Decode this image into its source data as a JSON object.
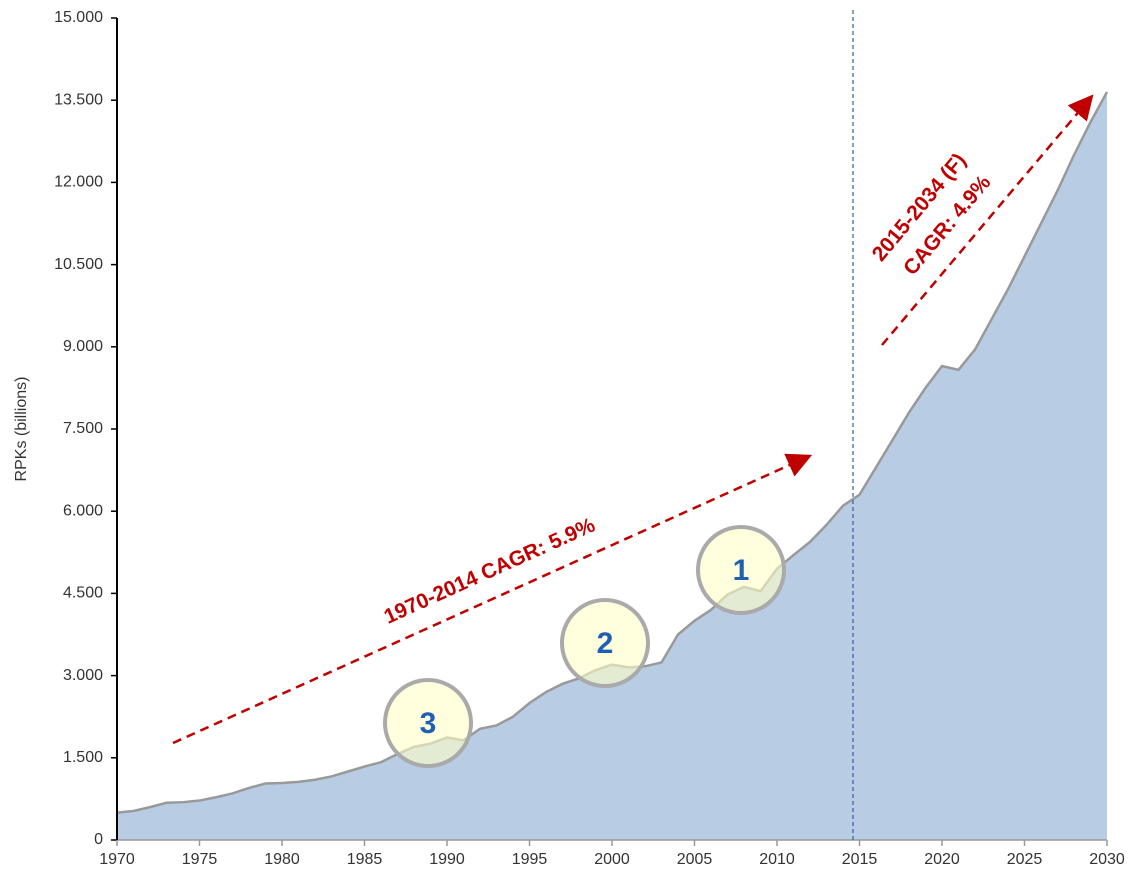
{
  "chart_data": {
    "type": "area",
    "y_label": "RPKs (billions)",
    "x": [
      1970,
      1971,
      1972,
      1973,
      1974,
      1975,
      1976,
      1977,
      1978,
      1979,
      1980,
      1981,
      1982,
      1983,
      1984,
      1985,
      1986,
      1987,
      1988,
      1989,
      1990,
      1991,
      1992,
      1993,
      1994,
      1995,
      1996,
      1997,
      1998,
      1999,
      2000,
      2001,
      2002,
      2003,
      2004,
      2005,
      2006,
      2007,
      2008,
      2009,
      2010,
      2011,
      2012,
      2013,
      2014,
      2015,
      2016,
      2017,
      2018,
      2019,
      2020,
      2021,
      2022,
      2023,
      2024,
      2025,
      2026,
      2027,
      2028,
      2029,
      2030
    ],
    "series": [
      {
        "color": "#b8cce4",
        "values": [
          500,
          530,
          600,
          680,
          690,
          720,
          780,
          850,
          950,
          1030,
          1040,
          1060,
          1100,
          1160,
          1250,
          1340,
          1420,
          1570,
          1700,
          1760,
          1870,
          1820,
          2030,
          2090,
          2250,
          2500,
          2700,
          2850,
          2950,
          3100,
          3200,
          3150,
          3170,
          3240,
          3750,
          4000,
          4200,
          4480,
          4620,
          4540,
          4950,
          5200,
          5440,
          5750,
          6100,
          6300,
          6800,
          7300,
          7800,
          8250,
          8650,
          8580,
          8950,
          9500,
          10050,
          10650,
          11250,
          11850,
          12500,
          13100,
          13650
        ]
      }
    ],
    "xlim": [
      1970,
      2030
    ],
    "xticks": [
      1970,
      1975,
      1980,
      1985,
      1990,
      1995,
      2000,
      2005,
      2010,
      2015,
      2020,
      2025,
      2030
    ],
    "ylim": [
      0,
      15000
    ],
    "yticks": [
      0,
      {
        "value": 1500,
        "label": "1.500"
      },
      {
        "value": 3000,
        "label": "3.000"
      },
      {
        "value": 4500,
        "label": "4.500"
      },
      {
        "value": 6000,
        "label": "6.000"
      },
      {
        "value": 7500,
        "label": "7.500"
      },
      {
        "value": 9000,
        "label": "9.000"
      },
      {
        "value": 10500,
        "label": "10.500"
      },
      {
        "value": 12000,
        "label": "12.000"
      },
      {
        "value": 13500,
        "label": "13.500"
      },
      {
        "value": 15000,
        "label": "15.000"
      }
    ],
    "annotations": [
      "1970-2014 CAGR: 5.9%",
      "2015-2034 (F)",
      "CAGR: 4.9%"
    ],
    "markers": [
      "1",
      "2",
      "3"
    ]
  }
}
